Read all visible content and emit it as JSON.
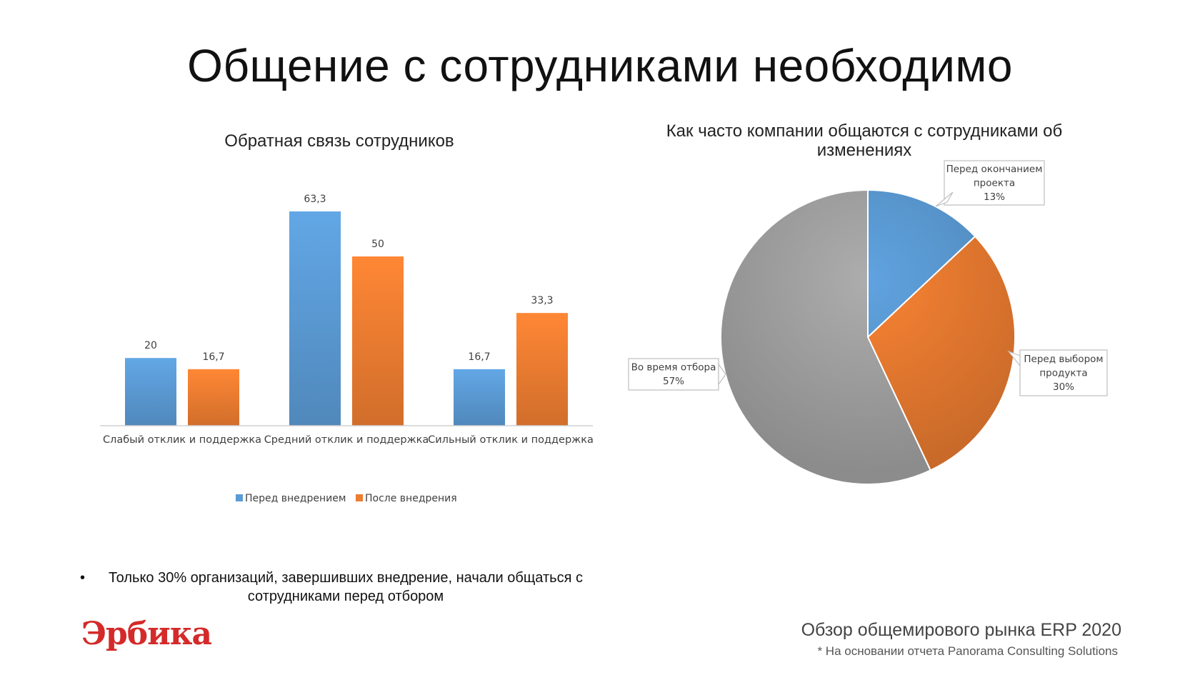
{
  "page": {
    "title": "Общение с сотрудниками необходимо",
    "bullet": "Только 30% организаций, завершивших внедрение, начали общаться с сотрудниками перед отбором",
    "bullet_marker": "•",
    "logo_text": "Эрбика",
    "report_title": "Обзор общемирового рынка ERP 2020",
    "report_note": "* На основании отчета Panorama Consulting Solutions"
  },
  "chart_data": [
    {
      "type": "bar",
      "title": "Обратная связь сотрудников",
      "categories": [
        "Слабый отклик и поддержка",
        "Средний отклик и поддержка",
        "Сильный отклик и поддержка"
      ],
      "series": [
        {
          "name": "Перед внедрением",
          "values": [
            20,
            63.3,
            16.7
          ],
          "labels": [
            "20",
            "63,3",
            "16,7"
          ],
          "color": "#5b9bd5"
        },
        {
          "name": "После внедрения",
          "values": [
            16.7,
            50,
            33.3
          ],
          "labels": [
            "16,7",
            "50",
            "33,3"
          ],
          "color": "#ed7d31"
        }
      ],
      "ylim": [
        0,
        70
      ],
      "grid": false,
      "legend": "bottom"
    },
    {
      "type": "pie",
      "title_lines": [
        "Как часто компании общаются с сотрудниками об",
        "изменениях"
      ],
      "slices": [
        {
          "label_lines": [
            "Перед окончанием",
            "проекта"
          ],
          "value": 13,
          "value_label": "13%",
          "color": "#5b9bd5"
        },
        {
          "label_lines": [
            "Перед выбором",
            "продукта"
          ],
          "value": 30,
          "value_label": "30%",
          "color": "#ed7d31"
        },
        {
          "label_lines": [
            "Во время отбора"
          ],
          "value": 57,
          "value_label": "57%",
          "color": "#a5a5a5"
        }
      ],
      "start": "top",
      "direction": "clockwise"
    }
  ]
}
